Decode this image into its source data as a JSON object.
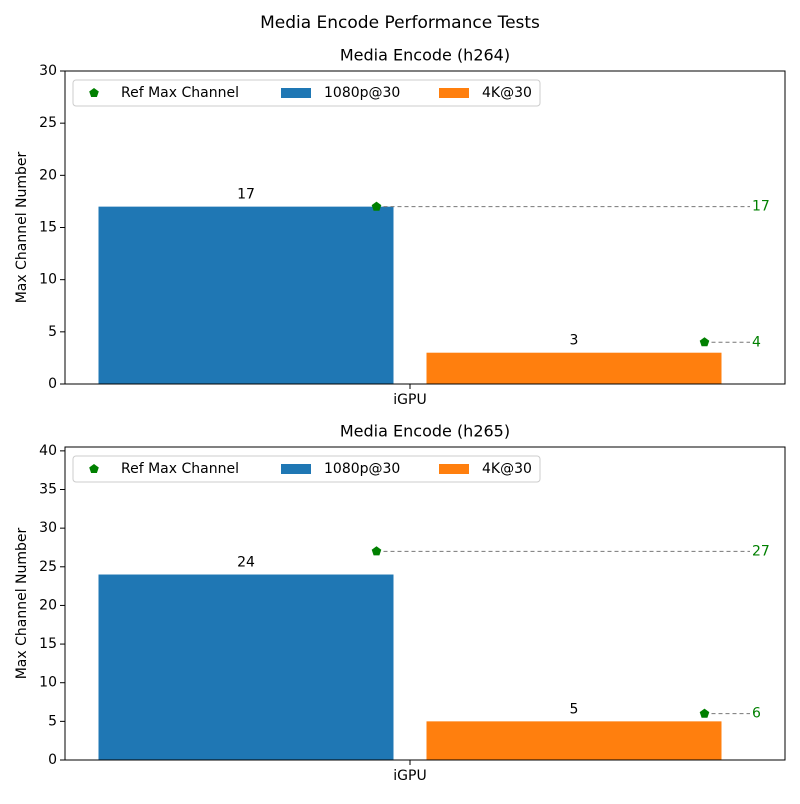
{
  "title": "Media Encode Performance Tests",
  "chart_data": [
    {
      "type": "bar",
      "title": "Media Encode (h264)",
      "ylabel": "Max Channel Number",
      "categories": [
        "iGPU"
      ],
      "series": [
        {
          "name": "1080p@30",
          "color": "#1f77b4",
          "values": [
            17
          ]
        },
        {
          "name": "4K@30",
          "color": "#ff7f0e",
          "values": [
            3
          ]
        }
      ],
      "reference": {
        "name": "Ref Max Channel",
        "color": "#008000",
        "values": [
          17,
          4
        ]
      },
      "ylim": [
        0,
        30
      ],
      "yticks": [
        0,
        5,
        10,
        15,
        20,
        25,
        30
      ],
      "legend": "upper left"
    },
    {
      "type": "bar",
      "title": "Media Encode (h265)",
      "ylabel": "Max Channel Number",
      "categories": [
        "iGPU"
      ],
      "series": [
        {
          "name": "1080p@30",
          "color": "#1f77b4",
          "values": [
            24
          ]
        },
        {
          "name": "4K@30",
          "color": "#ff7f0e",
          "values": [
            5
          ]
        }
      ],
      "reference": {
        "name": "Ref Max Channel",
        "color": "#008000",
        "values": [
          27,
          6
        ]
      },
      "ylim": [
        0,
        40.5
      ],
      "yticks": [
        0,
        5,
        10,
        15,
        20,
        25,
        30,
        35,
        40
      ],
      "legend": "upper left"
    }
  ]
}
